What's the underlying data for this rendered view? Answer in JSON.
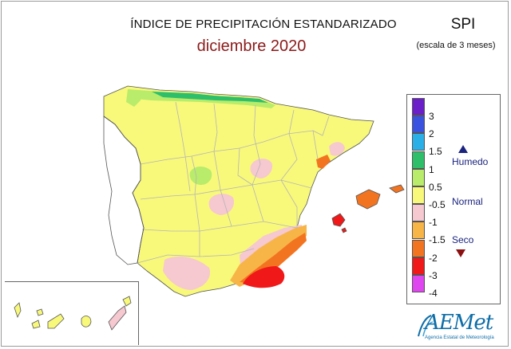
{
  "header": {
    "title": "ÍNDICE DE PRECIPITACIÓN ESTANDARIZADO",
    "subtitle": "diciembre 2020",
    "index_name": "SPI",
    "scale_note": "(escala de 3 meses)"
  },
  "legend": {
    "classes": [
      {
        "tick": "3",
        "color": "#6a1fc9"
      },
      {
        "tick": "2",
        "color": "#3a52e0"
      },
      {
        "tick": "1.5",
        "color": "#2ab0e6"
      },
      {
        "tick": "1",
        "color": "#2fbf6a"
      },
      {
        "tick": "0.5",
        "color": "#b8ec6a"
      },
      {
        "tick": "-0.5",
        "color": "#f8f97a"
      },
      {
        "tick": "-1",
        "color": "#f6c8d0"
      },
      {
        "tick": "-1.5",
        "color": "#f7b548"
      },
      {
        "tick": "-2",
        "color": "#f37420"
      },
      {
        "tick": "-3",
        "color": "#f01818"
      },
      {
        "tick": "-4",
        "color": "#e046f0"
      }
    ],
    "category_wet": "Humedo",
    "category_normal": "Normal",
    "category_dry": "Seco"
  },
  "map_colors": {
    "land": "#f8f97a",
    "very_dry": "#f6c8d0",
    "moderately_dry": "#f7b548",
    "severely_dry": "#f37420",
    "extremely_dry": "#f01818",
    "moderately_wet": "#b8ec6a",
    "very_wet": "#2fbf6a",
    "borders": "#b5b5b5",
    "coast": "#555555"
  },
  "logo": {
    "name": "AEMet",
    "tagline": "Agencia Estatal de Meteorología"
  }
}
